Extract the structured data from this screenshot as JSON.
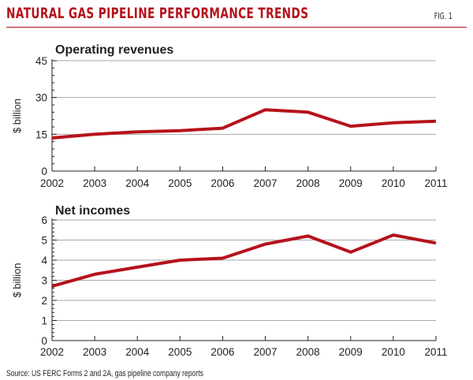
{
  "header": {
    "title": "NATURAL GAS PIPELINE PERFORMANCE TRENDS",
    "fig_label": "FIG. 1"
  },
  "source": "Source: US FERC Forms 2 and 2A, gas pipeline company reports",
  "colors": {
    "line": "#b5121b",
    "grid": "#a7a9ac",
    "title": "#b5121b"
  },
  "chart_data": [
    {
      "type": "line",
      "title": "Operating revenues",
      "ylabel": "$ billion",
      "xlabel": "",
      "categories": [
        "2002",
        "2003",
        "2004",
        "2005",
        "2006",
        "2007",
        "2008",
        "2009",
        "2010",
        "2011"
      ],
      "values": [
        13.5,
        15,
        16,
        16.5,
        17.5,
        25,
        24,
        18.3,
        19.7,
        20.3
      ],
      "ylim": [
        0,
        45
      ],
      "yticks": [
        0,
        15,
        30,
        45
      ],
      "minor_step": 3,
      "grid": true
    },
    {
      "type": "line",
      "title": "Net incomes",
      "ylabel": "$ billion",
      "xlabel": "",
      "categories": [
        "2002",
        "2003",
        "2004",
        "2005",
        "2006",
        "2007",
        "2008",
        "2009",
        "2010",
        "2011"
      ],
      "values": [
        2.7,
        3.3,
        3.65,
        4.0,
        4.1,
        4.8,
        5.2,
        4.4,
        5.25,
        4.85
      ],
      "ylim": [
        0,
        6
      ],
      "yticks": [
        0,
        1,
        2,
        3,
        4,
        5,
        6
      ],
      "minor_step": 0.2,
      "grid": true
    }
  ]
}
